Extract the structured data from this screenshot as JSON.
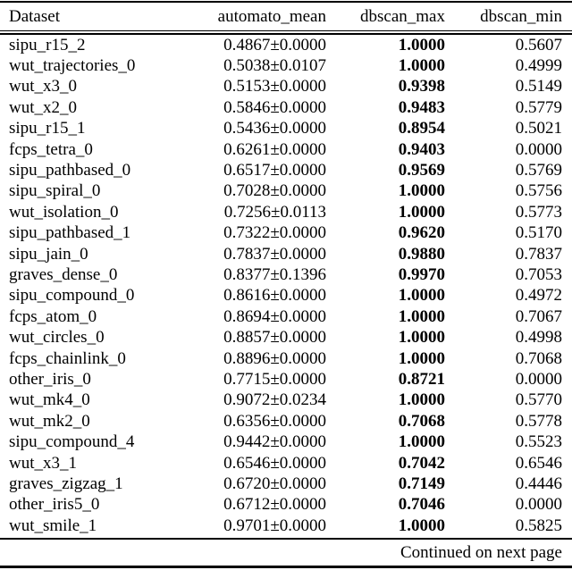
{
  "colors": {
    "text": "#000000",
    "background": "#ffffff",
    "rule": "#000000"
  },
  "table": {
    "columns": [
      "Dataset",
      "automato_mean",
      "dbscan_max",
      "dbscan_min"
    ],
    "bold_column": "dbscan_max",
    "rows": [
      [
        "sipu_r15_2",
        "0.4867±0.0000",
        "1.0000",
        "0.5607"
      ],
      [
        "wut_trajectories_0",
        "0.5038±0.0107",
        "1.0000",
        "0.4999"
      ],
      [
        "wut_x3_0",
        "0.5153±0.0000",
        "0.9398",
        "0.5149"
      ],
      [
        "wut_x2_0",
        "0.5846±0.0000",
        "0.9483",
        "0.5779"
      ],
      [
        "sipu_r15_1",
        "0.5436±0.0000",
        "0.8954",
        "0.5021"
      ],
      [
        "fcps_tetra_0",
        "0.6261±0.0000",
        "0.9403",
        "0.0000"
      ],
      [
        "sipu_pathbased_0",
        "0.6517±0.0000",
        "0.9569",
        "0.5769"
      ],
      [
        "sipu_spiral_0",
        "0.7028±0.0000",
        "1.0000",
        "0.5756"
      ],
      [
        "wut_isolation_0",
        "0.7256±0.0113",
        "1.0000",
        "0.5773"
      ],
      [
        "sipu_pathbased_1",
        "0.7322±0.0000",
        "0.9620",
        "0.5170"
      ],
      [
        "sipu_jain_0",
        "0.7837±0.0000",
        "0.9880",
        "0.7837"
      ],
      [
        "graves_dense_0",
        "0.8377±0.1396",
        "0.9970",
        "0.7053"
      ],
      [
        "sipu_compound_0",
        "0.8616±0.0000",
        "1.0000",
        "0.4972"
      ],
      [
        "fcps_atom_0",
        "0.8694±0.0000",
        "1.0000",
        "0.7067"
      ],
      [
        "wut_circles_0",
        "0.8857±0.0000",
        "1.0000",
        "0.4998"
      ],
      [
        "fcps_chainlink_0",
        "0.8896±0.0000",
        "1.0000",
        "0.7068"
      ],
      [
        "other_iris_0",
        "0.7715±0.0000",
        "0.8721",
        "0.0000"
      ],
      [
        "wut_mk4_0",
        "0.9072±0.0234",
        "1.0000",
        "0.5770"
      ],
      [
        "wut_mk2_0",
        "0.6356±0.0000",
        "0.7068",
        "0.5778"
      ],
      [
        "sipu_compound_4",
        "0.9442±0.0000",
        "1.0000",
        "0.5523"
      ],
      [
        "wut_x3_1",
        "0.6546±0.0000",
        "0.7042",
        "0.6546"
      ],
      [
        "graves_zigzag_1",
        "0.6720±0.0000",
        "0.7149",
        "0.4446"
      ],
      [
        "other_iris5_0",
        "0.6712±0.0000",
        "0.7046",
        "0.0000"
      ],
      [
        "wut_smile_1",
        "0.9701±0.0000",
        "1.0000",
        "0.5825"
      ]
    ]
  },
  "footer": {
    "continued": "Continued on next page"
  }
}
